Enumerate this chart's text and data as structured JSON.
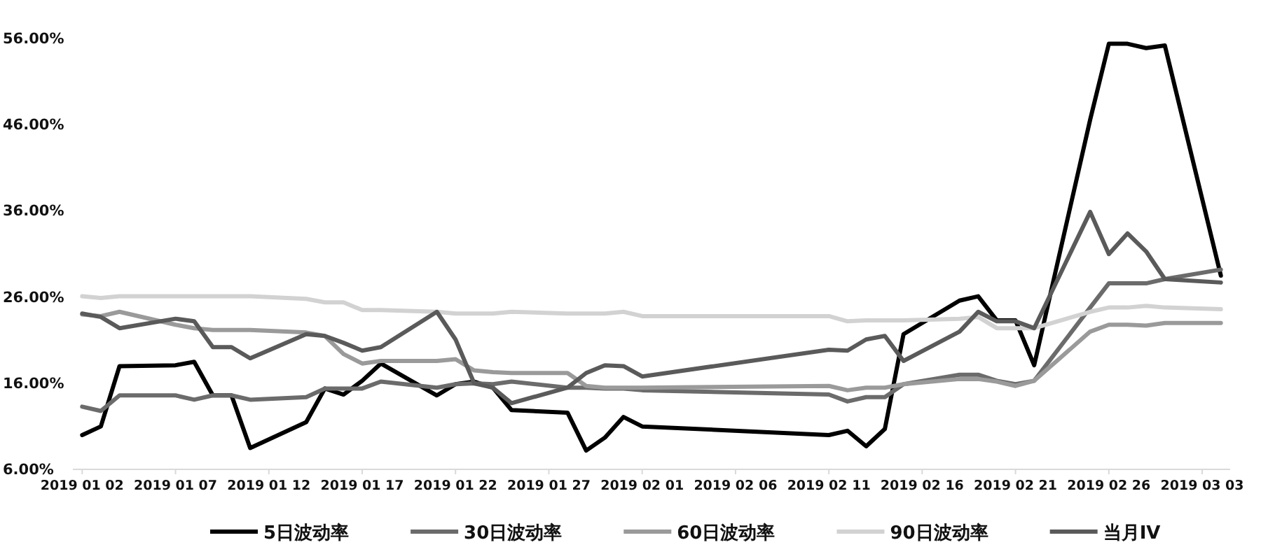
{
  "chart_data": {
    "type": "line",
    "x": [
      "2019-01-02",
      "2019-01-03",
      "2019-01-04",
      "2019-01-07",
      "2019-01-08",
      "2019-01-09",
      "2019-01-10",
      "2019-01-11",
      "2019-01-14",
      "2019-01-15",
      "2019-01-16",
      "2019-01-17",
      "2019-01-18",
      "2019-01-21",
      "2019-01-22",
      "2019-01-23",
      "2019-01-24",
      "2019-01-25",
      "2019-01-28",
      "2019-01-29",
      "2019-01-30",
      "2019-01-31",
      "2019-02-01",
      "2019-02-11",
      "2019-02-12",
      "2019-02-13",
      "2019-02-14",
      "2019-02-15",
      "2019-02-18",
      "2019-02-19",
      "2019-02-20",
      "2019-02-21",
      "2019-02-22",
      "2019-02-25",
      "2019-02-26",
      "2019-02-27",
      "2019-02-28",
      "2019-03-01",
      "2019-03-04"
    ],
    "series": [
      {
        "name": "5日波动率",
        "color": "#000000",
        "values": [
          9.9,
          10.9,
          17.9,
          18.0,
          18.4,
          14.5,
          14.5,
          8.4,
          11.4,
          15.3,
          14.6,
          16.2,
          18.2,
          14.5,
          15.8,
          16.1,
          15.4,
          12.8,
          12.5,
          8.1,
          9.6,
          12.0,
          10.9,
          9.9,
          10.4,
          8.6,
          10.6,
          21.6,
          25.5,
          26.0,
          23.2,
          23.2,
          18.0,
          46.5,
          55.3,
          55.3,
          54.8,
          55.1,
          28.4
        ]
      },
      {
        "name": "30日波动率",
        "color": "#6b6b6b",
        "values": [
          13.2,
          12.7,
          14.5,
          14.5,
          14.0,
          14.5,
          14.5,
          14.0,
          14.3,
          15.3,
          15.3,
          15.3,
          16.1,
          15.4,
          15.8,
          15.9,
          15.8,
          16.1,
          15.4,
          15.4,
          15.3,
          15.3,
          15.1,
          14.6,
          13.8,
          14.3,
          14.3,
          15.8,
          16.9,
          16.9,
          16.2,
          15.8,
          16.2,
          24.7,
          27.5,
          27.5,
          27.5,
          28.0,
          29.1
        ]
      },
      {
        "name": "60日波动率",
        "color": "#9a9a9a",
        "values": [
          23.9,
          23.7,
          24.2,
          22.7,
          22.3,
          22.1,
          22.1,
          22.1,
          21.8,
          21.4,
          19.3,
          18.2,
          18.5,
          18.5,
          18.7,
          17.4,
          17.2,
          17.1,
          17.1,
          15.6,
          15.4,
          15.4,
          15.4,
          15.6,
          15.1,
          15.4,
          15.4,
          15.8,
          16.4,
          16.4,
          16.1,
          15.6,
          16.2,
          21.9,
          22.7,
          22.7,
          22.6,
          22.9,
          22.9
        ]
      },
      {
        "name": "90日波动率",
        "color": "#d2d2d2",
        "values": [
          26.0,
          25.8,
          26.0,
          26.0,
          26.0,
          26.0,
          26.0,
          26.0,
          25.7,
          25.3,
          25.3,
          24.4,
          24.4,
          24.2,
          24.0,
          24.0,
          24.0,
          24.2,
          24.0,
          24.0,
          24.0,
          24.2,
          23.7,
          23.7,
          23.1,
          23.2,
          23.2,
          23.2,
          23.4,
          23.6,
          22.3,
          22.3,
          22.3,
          24.2,
          24.7,
          24.7,
          24.9,
          24.7,
          24.5
        ]
      },
      {
        "name": "当月IV",
        "color": "#5a5a5a",
        "values": [
          24.0,
          23.6,
          22.3,
          23.4,
          23.1,
          20.1,
          20.1,
          18.8,
          21.6,
          21.4,
          20.6,
          19.7,
          20.1,
          24.2,
          21.0,
          15.9,
          15.4,
          13.6,
          15.4,
          17.1,
          18.0,
          17.9,
          16.7,
          19.8,
          19.7,
          21.0,
          21.4,
          18.5,
          21.9,
          24.2,
          23.1,
          23.1,
          22.3,
          35.8,
          30.9,
          33.3,
          31.2,
          28.0,
          27.6
        ]
      }
    ],
    "xlim": [
      "2019-01-01T12:00",
      "2019-03-04T12:00"
    ],
    "xticks": [
      {
        "value": "2019-01-02",
        "label": "2019 01 02"
      },
      {
        "value": "2019-01-07",
        "label": "2019 01 07"
      },
      {
        "value": "2019-01-12",
        "label": "2019 01 12"
      },
      {
        "value": "2019-01-17",
        "label": "2019 01 17"
      },
      {
        "value": "2019-01-22",
        "label": "2019 01 22"
      },
      {
        "value": "2019-01-27",
        "label": "2019 01 27"
      },
      {
        "value": "2019-02-01",
        "label": "2019 02 01"
      },
      {
        "value": "2019-02-06",
        "label": "2019 02 06"
      },
      {
        "value": "2019-02-11",
        "label": "2019 02 11"
      },
      {
        "value": "2019-02-16",
        "label": "2019 02 16"
      },
      {
        "value": "2019-02-21",
        "label": "2019 02 21"
      },
      {
        "value": "2019-02-26",
        "label": "2019 02 26"
      },
      {
        "value": "2019-03-03",
        "label": "2019 03 03"
      }
    ],
    "ylim": [
      6,
      56
    ],
    "yticks": [
      {
        "value": 6,
        "label": "6.00%"
      },
      {
        "value": 16,
        "label": "16.00%"
      },
      {
        "value": 26,
        "label": "26.00%"
      },
      {
        "value": 36,
        "label": "36.00%"
      },
      {
        "value": 46,
        "label": "46.00%"
      },
      {
        "value": 56,
        "label": "56.00%"
      }
    ],
    "grid": false,
    "legend": "bottom",
    "line_style": "solid",
    "marker": "none"
  }
}
